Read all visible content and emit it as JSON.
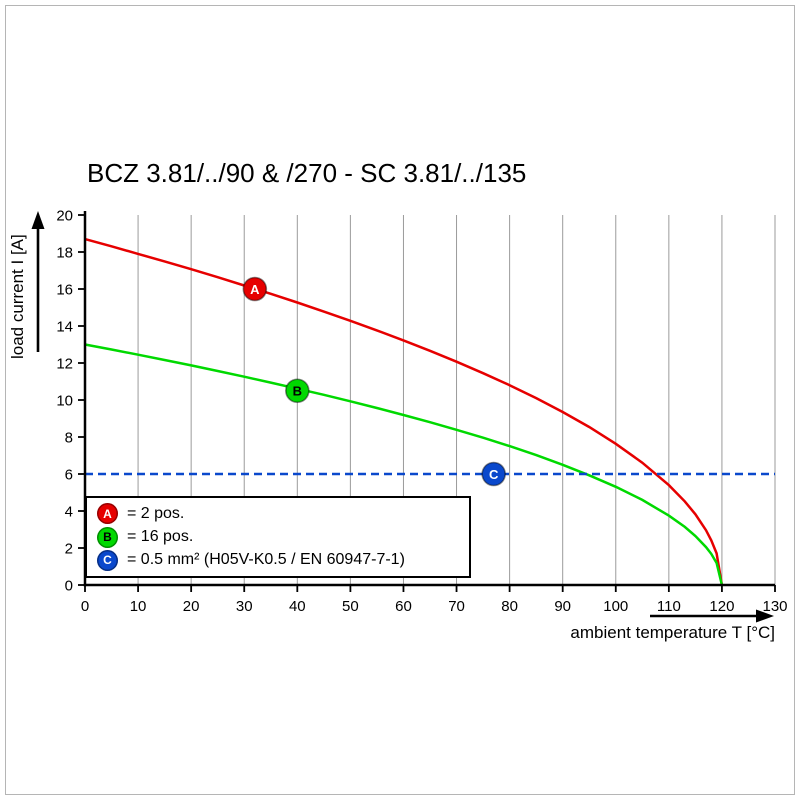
{
  "title": "BCZ 3.81/../90 & /270 - SC 3.81/../135",
  "chart_data": {
    "type": "line",
    "title": "BCZ 3.81/../90 & /270 - SC 3.81/../135",
    "xlabel": "ambient temperature T [°C]",
    "ylabel": "load current I [A]",
    "xlim": [
      0,
      130
    ],
    "ylim": [
      0,
      20
    ],
    "x_ticks": [
      0,
      10,
      20,
      30,
      40,
      50,
      60,
      70,
      80,
      90,
      100,
      110,
      120,
      130
    ],
    "y_ticks": [
      0,
      2,
      4,
      6,
      8,
      10,
      12,
      14,
      16,
      18,
      20
    ],
    "grid": {
      "vertical": true,
      "horizontal": false,
      "color": "#9b9b9b"
    },
    "axis_color": "#000000",
    "legend_position": "bottom-left",
    "series": [
      {
        "name": "A",
        "label": "= 2 pos.",
        "color": "#e60000",
        "letter_color": "#ffffff",
        "style": "solid",
        "marker_at": [
          32,
          16
        ],
        "points": [
          [
            0,
            18.7
          ],
          [
            5,
            18.31
          ],
          [
            10,
            17.9
          ],
          [
            15,
            17.49
          ],
          [
            20,
            17.07
          ],
          [
            25,
            16.64
          ],
          [
            30,
            16.19
          ],
          [
            35,
            15.74
          ],
          [
            40,
            15.27
          ],
          [
            45,
            14.78
          ],
          [
            50,
            14.28
          ],
          [
            55,
            13.76
          ],
          [
            60,
            13.22
          ],
          [
            65,
            12.66
          ],
          [
            70,
            12.07
          ],
          [
            75,
            11.45
          ],
          [
            80,
            10.8
          ],
          [
            85,
            10.1
          ],
          [
            90,
            9.35
          ],
          [
            95,
            8.54
          ],
          [
            100,
            7.63
          ],
          [
            105,
            6.61
          ],
          [
            110,
            5.4
          ],
          [
            113,
            4.52
          ],
          [
            115,
            3.82
          ],
          [
            117,
            2.96
          ],
          [
            118,
            2.41
          ],
          [
            119,
            1.71
          ],
          [
            120,
            0
          ]
        ]
      },
      {
        "name": "B",
        "label": "= 16 pos.",
        "color": "#00d900",
        "letter_color": "#000000",
        "style": "solid",
        "marker_at": [
          40,
          10.5
        ],
        "points": [
          [
            0,
            13
          ],
          [
            5,
            12.73
          ],
          [
            10,
            12.45
          ],
          [
            15,
            12.16
          ],
          [
            20,
            11.87
          ],
          [
            25,
            11.57
          ],
          [
            30,
            11.26
          ],
          [
            35,
            10.94
          ],
          [
            40,
            10.61
          ],
          [
            45,
            10.28
          ],
          [
            50,
            9.93
          ],
          [
            55,
            9.57
          ],
          [
            60,
            9.19
          ],
          [
            65,
            8.8
          ],
          [
            70,
            8.39
          ],
          [
            75,
            7.96
          ],
          [
            80,
            7.51
          ],
          [
            85,
            7.02
          ],
          [
            90,
            6.5
          ],
          [
            95,
            5.93
          ],
          [
            100,
            5.31
          ],
          [
            105,
            4.6
          ],
          [
            110,
            3.75
          ],
          [
            113,
            3.14
          ],
          [
            115,
            2.65
          ],
          [
            117,
            2.05
          ],
          [
            118,
            1.68
          ],
          [
            119,
            1.19
          ],
          [
            120,
            0
          ]
        ]
      },
      {
        "name": "C",
        "label": "= 0.5 mm² (H05V-K0.5 / EN 60947-7-1)",
        "color": "#0a48cc",
        "letter_color": "#ffffff",
        "style": "dashed",
        "marker_at": [
          77,
          6
        ],
        "points": [
          [
            0,
            6
          ],
          [
            130,
            6
          ]
        ]
      }
    ]
  }
}
